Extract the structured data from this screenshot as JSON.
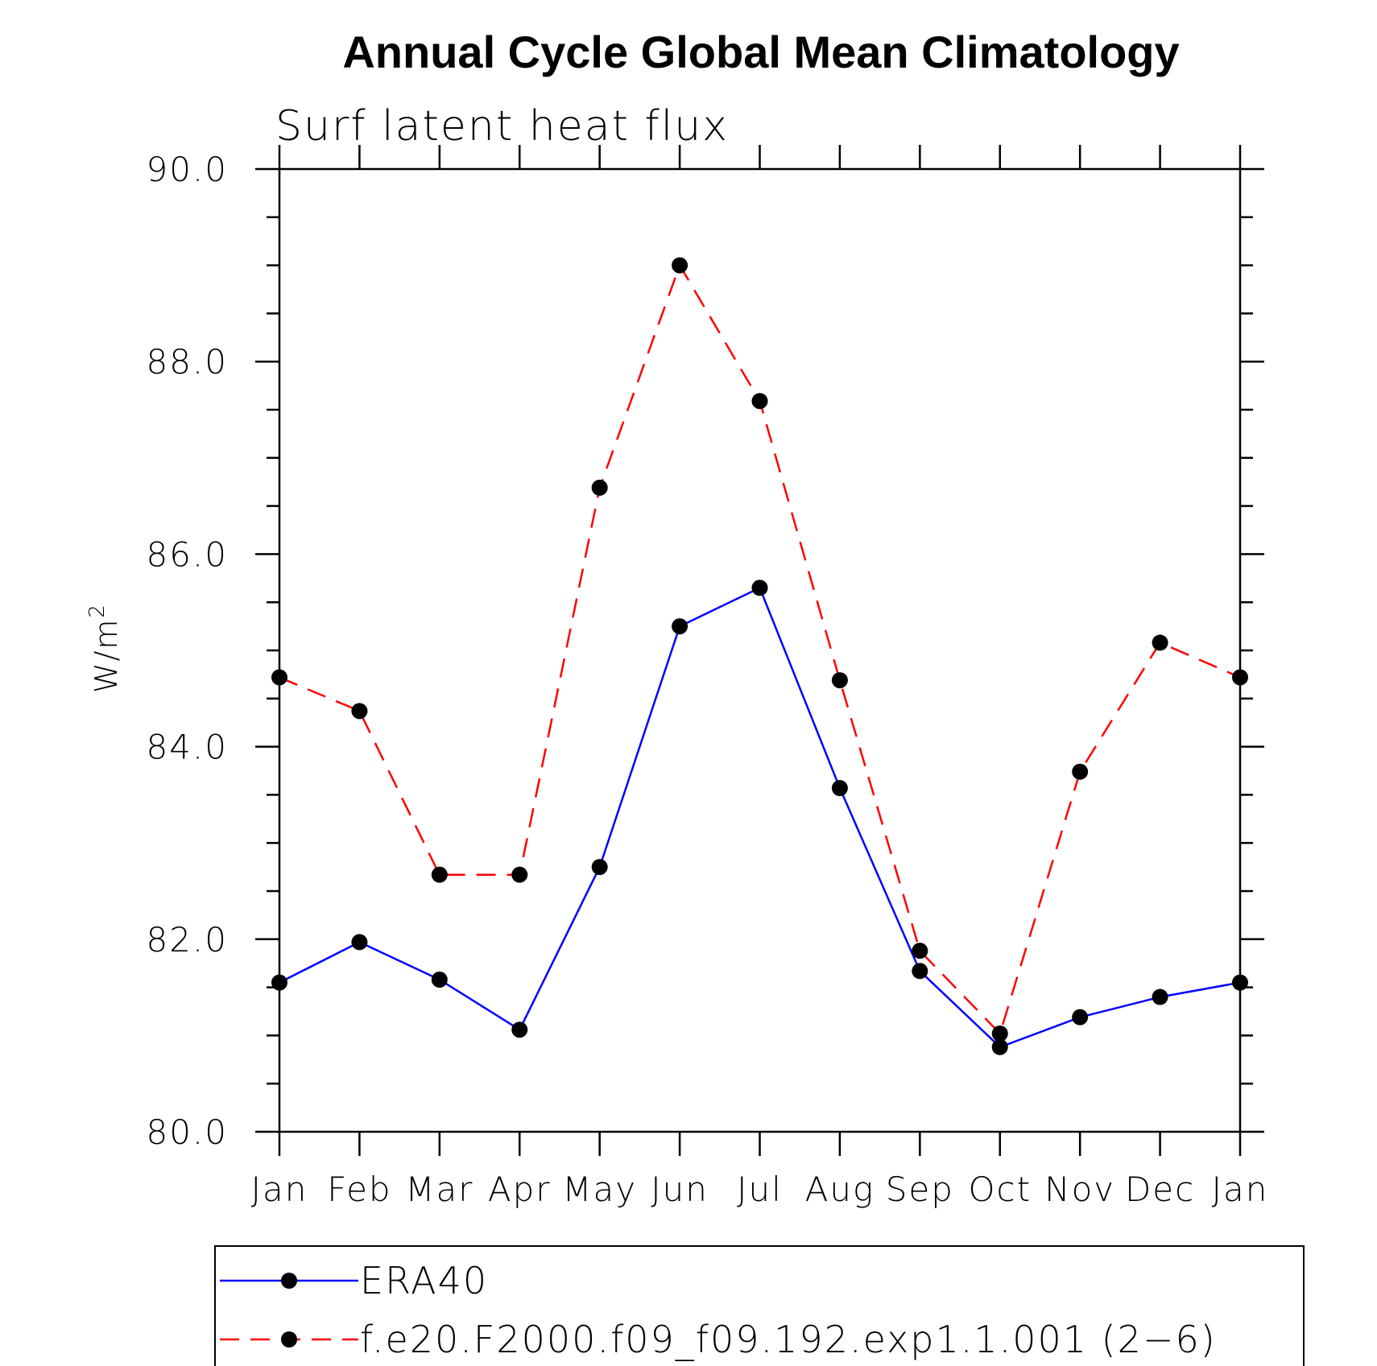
{
  "chart_data": {
    "type": "line",
    "title": "Annual Cycle Global Mean Climatology",
    "subtitle": "Surf latent heat flux",
    "ylabel": "W/m",
    "ylabel_sup": "2",
    "ylim": [
      80.0,
      90.0
    ],
    "yticks": [
      "80.0",
      "82.0",
      "84.0",
      "86.0",
      "88.0",
      "90.0"
    ],
    "categories": [
      "Jan",
      "Feb",
      "Mar",
      "Apr",
      "May",
      "Jun",
      "Jul",
      "Aug",
      "Sep",
      "Oct",
      "Nov",
      "Dec",
      "Jan"
    ],
    "grid": false,
    "legend_position": "bottom",
    "series": [
      {
        "name": "ERA40",
        "color": "#0000ff",
        "dash": "solid",
        "values": [
          81.55,
          81.97,
          81.58,
          81.06,
          82.75,
          85.25,
          85.65,
          83.57,
          81.67,
          80.88,
          81.19,
          81.4,
          81.55
        ]
      },
      {
        "name": "f.e20.F2000.f09_f09.192.exp1.1.001 (2−6)",
        "color": "#ff0000",
        "dash": "dashed",
        "values": [
          84.72,
          84.37,
          82.67,
          82.67,
          86.69,
          89.0,
          87.59,
          84.69,
          81.88,
          81.02,
          83.74,
          85.08,
          84.72
        ]
      }
    ]
  }
}
